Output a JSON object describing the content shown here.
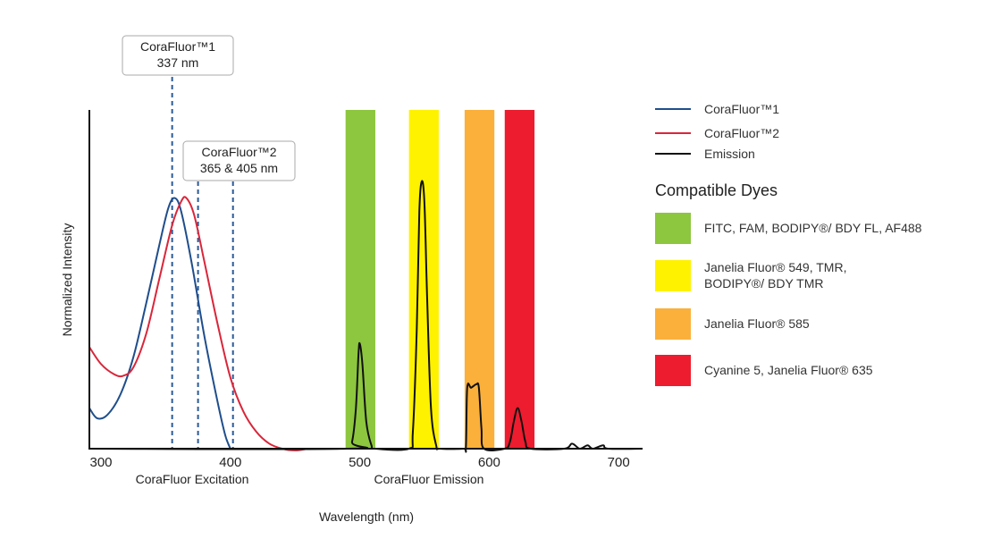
{
  "chart_data": {
    "type": "line",
    "xlabel": "Wavelength (nm)",
    "ylabel": "Normalized Intensity",
    "section_labels": [
      "CoraFluor Excitation",
      "CoraFluor Emission"
    ],
    "xlim": [
      291,
      718
    ],
    "ylim": [
      0,
      1
    ],
    "x_ticks": [
      300,
      400,
      500,
      600,
      700
    ],
    "grid": false,
    "legend_position": "right",
    "series": [
      {
        "name": "CoraFluor™1",
        "color": "#1f4e8c",
        "points": [
          [
            291,
            0.12
          ],
          [
            297,
            0.09
          ],
          [
            305,
            0.1
          ],
          [
            315,
            0.16
          ],
          [
            325,
            0.27
          ],
          [
            335,
            0.43
          ],
          [
            345,
            0.6
          ],
          [
            352,
            0.71
          ],
          [
            357,
            0.74
          ],
          [
            362,
            0.7
          ],
          [
            370,
            0.55
          ],
          [
            380,
            0.33
          ],
          [
            390,
            0.14
          ],
          [
            396,
            0.04
          ],
          [
            400,
            0.0
          ]
        ]
      },
      {
        "name": "CoraFluor™2",
        "color": "#d9263a",
        "points": [
          [
            291,
            0.3
          ],
          [
            300,
            0.25
          ],
          [
            310,
            0.22
          ],
          [
            317,
            0.215
          ],
          [
            325,
            0.24
          ],
          [
            335,
            0.34
          ],
          [
            345,
            0.5
          ],
          [
            355,
            0.66
          ],
          [
            362,
            0.73
          ],
          [
            366,
            0.74
          ],
          [
            372,
            0.69
          ],
          [
            380,
            0.55
          ],
          [
            390,
            0.37
          ],
          [
            400,
            0.21
          ],
          [
            410,
            0.11
          ],
          [
            420,
            0.05
          ],
          [
            430,
            0.015
          ],
          [
            440,
            0.0
          ],
          [
            450,
            -0.005
          ],
          [
            460,
            0.0
          ]
        ]
      },
      {
        "name": "Emission",
        "color": "#111111",
        "points": [
          [
            291,
            0
          ],
          [
            490,
            0
          ],
          [
            494,
            0.02
          ],
          [
            497,
            0.12
          ],
          [
            499,
            0.28
          ],
          [
            500,
            0.31
          ],
          [
            502,
            0.25
          ],
          [
            505,
            0.08
          ],
          [
            509,
            0.01
          ],
          [
            512,
            0
          ],
          [
            538,
            0
          ],
          [
            541,
            0.05
          ],
          [
            544,
            0.35
          ],
          [
            546,
            0.7
          ],
          [
            548,
            0.79
          ],
          [
            550,
            0.72
          ],
          [
            552,
            0.45
          ],
          [
            555,
            0.12
          ],
          [
            559,
            0.01
          ],
          [
            562,
            0
          ],
          [
            580,
            0
          ],
          [
            582,
            0.005
          ],
          [
            583,
            0.18
          ],
          [
            586,
            0.18
          ],
          [
            590,
            0.19
          ],
          [
            592,
            0.18
          ],
          [
            594,
            0.06
          ],
          [
            596,
            0
          ],
          [
            612,
            0
          ],
          [
            616,
            0.02
          ],
          [
            619,
            0.08
          ],
          [
            622,
            0.12
          ],
          [
            625,
            0.08
          ],
          [
            628,
            0.02
          ],
          [
            632,
            0
          ],
          [
            658,
            0
          ],
          [
            664,
            0.015
          ],
          [
            670,
            0
          ],
          [
            676,
            0.01
          ],
          [
            680,
            0
          ],
          [
            688,
            0.01
          ],
          [
            692,
            0
          ],
          [
            718,
            0
          ]
        ]
      }
    ],
    "dye_bands": [
      {
        "range": [
          489,
          512
        ],
        "color": "#8dc63f",
        "lines": [
          "FITC, FAM, BODIPY®/ BDY FL, AF488"
        ]
      },
      {
        "range": [
          538,
          561
        ],
        "color": "#fff200",
        "lines": [
          "Janelia Fluor® 549, TMR,",
          "BODIPY®/ BDY TMR"
        ]
      },
      {
        "range": [
          581,
          604
        ],
        "color": "#fbb03b",
        "lines": [
          "Janelia Fluor® 585"
        ]
      },
      {
        "range": [
          612,
          635
        ],
        "color": "#ed1c2e",
        "lines": [
          "Cyanine 5, Janelia Fluor® 635"
        ]
      }
    ],
    "dye_legend_title": "Compatible Dyes",
    "annotations": [
      {
        "lines": [
          "CoraFluor™1",
          "337 nm"
        ],
        "marker_x": [
          355
        ]
      },
      {
        "lines": [
          "CoraFluor™2",
          "365 & 405 nm"
        ],
        "marker_x": [
          375,
          402
        ]
      }
    ]
  }
}
